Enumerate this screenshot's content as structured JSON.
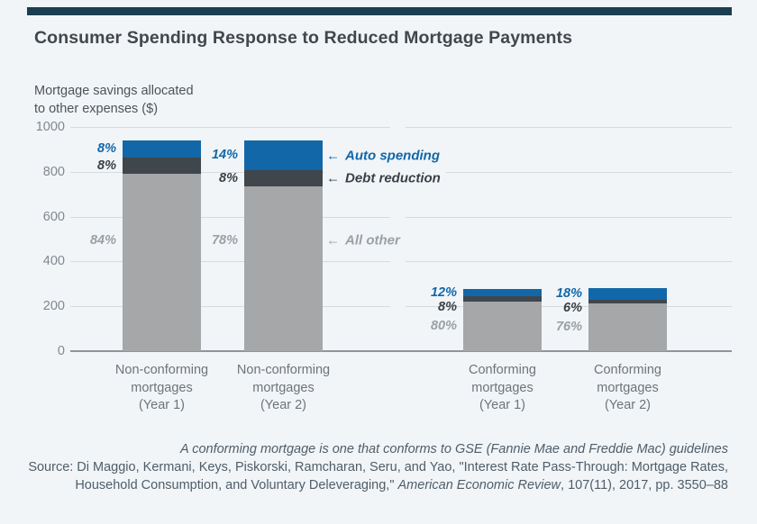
{
  "page": {
    "background_color": "#f1f5f8",
    "accent_bar_color": "#1c3e50"
  },
  "header": {
    "title": "Consumer Spending Response to Reduced Mortgage Payments"
  },
  "chart_data": {
    "type": "bar",
    "stacked": true,
    "title": "Consumer Spending Response to Reduced Mortgage Payments",
    "ylabel": "Mortgage savings allocated to other expenses ($)",
    "ylabel_lines": [
      "Mortgage savings allocated",
      "to other expenses ($)"
    ],
    "ylim": [
      0,
      1000
    ],
    "yticks": [
      1000,
      800,
      600,
      400,
      200,
      0
    ],
    "grid": true,
    "categories": [
      [
        "Non-conforming",
        "mortgages",
        "(Year 1)"
      ],
      [
        "Non-conforming",
        "mortgages",
        "(Year 2)"
      ],
      [
        "Conforming",
        "mortgages",
        "(Year 1)"
      ],
      [
        "Conforming",
        "mortgages",
        "(Year 2)"
      ]
    ],
    "totals": [
      940,
      940,
      278,
      281
    ],
    "series": [
      {
        "name": "Auto spending",
        "color": "#1267a8",
        "pct": [
          8,
          14,
          12,
          18
        ],
        "labels": [
          "8%",
          "14%",
          "12%",
          "18%"
        ]
      },
      {
        "name": "Debt reduction",
        "color": "#3f464c",
        "pct": [
          8,
          8,
          8,
          6
        ],
        "labels": [
          "8%",
          "8%",
          "8%",
          "6%"
        ]
      },
      {
        "name": "All other",
        "color": "#a5a7a9",
        "pct": [
          84,
          78,
          80,
          76
        ],
        "labels": [
          "84%",
          "78%",
          "80%",
          "76%"
        ]
      }
    ],
    "annotations": [
      {
        "arrow": "←",
        "text": "Auto spending",
        "color": "#1267a8"
      },
      {
        "arrow": "←",
        "text": "Debt reduction",
        "color": "#3a4046"
      },
      {
        "arrow": "←",
        "text": "All other",
        "color": "#9aa0a6"
      }
    ],
    "pct_label_colors": {
      "auto": "#1267a8",
      "debt": "#3a4046",
      "other": "#9aa0a6"
    }
  },
  "footer": {
    "note": "A conforming mortgage is one that conforms to GSE (Fannie Mae and Freddie Mac) guidelines",
    "source_line1": "Source: Di Maggio, Kermani, Keys, Piskorski, Ramcharan, Seru, and Yao, \"Interest Rate Pass-Through: Mortgage Rates,",
    "source_line2_pre": "Household Consumption, and Voluntary Deleveraging,\" ",
    "source_line2_italic": "American Economic Review",
    "source_line2_post": ", 107(11), 2017, pp. 3550–88"
  }
}
